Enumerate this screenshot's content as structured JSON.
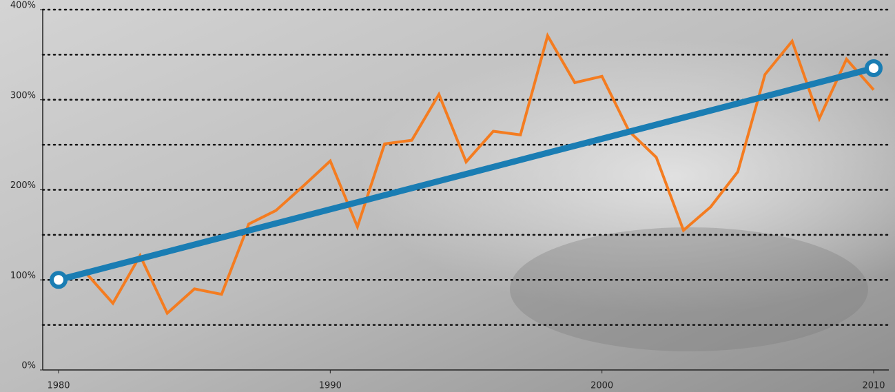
{
  "chart_data": {
    "type": "line",
    "xlim": [
      1980,
      2010
    ],
    "xticks": [
      1980,
      1990,
      2000,
      2010
    ],
    "ylim": [
      0,
      400
    ],
    "yticks": [
      {
        "value": 0,
        "label": "0%"
      },
      {
        "value": 100,
        "label": "100%"
      },
      {
        "value": 200,
        "label": "200%"
      },
      {
        "value": 300,
        "label": "300%"
      },
      {
        "value": 400,
        "label": "400%"
      }
    ],
    "ygrid": [
      50,
      100,
      150,
      200,
      250,
      300,
      350,
      400
    ],
    "grid": true,
    "series": [
      {
        "color": "#f47c20",
        "x": [
          1980,
          1981,
          1982,
          1983,
          1984,
          1985,
          1986,
          1987,
          1988,
          1989,
          1990,
          1991,
          1992,
          1993,
          1994,
          1995,
          1996,
          1997,
          1998,
          1999,
          2000,
          2001,
          2002,
          2003,
          2004,
          2005,
          2006,
          2007,
          2008,
          2009,
          2010
        ],
        "values": [
          100,
          108,
          74,
          127,
          63,
          90,
          84,
          162,
          177,
          204,
          232,
          159,
          251,
          255,
          306,
          231,
          265,
          261,
          371,
          319,
          326,
          265,
          236,
          155,
          181,
          220,
          328,
          365,
          279,
          345,
          311
        ]
      },
      {
        "color": "#1a7db3",
        "markers": true,
        "x": [
          1980,
          2010
        ],
        "values": [
          100,
          335
        ]
      }
    ]
  }
}
